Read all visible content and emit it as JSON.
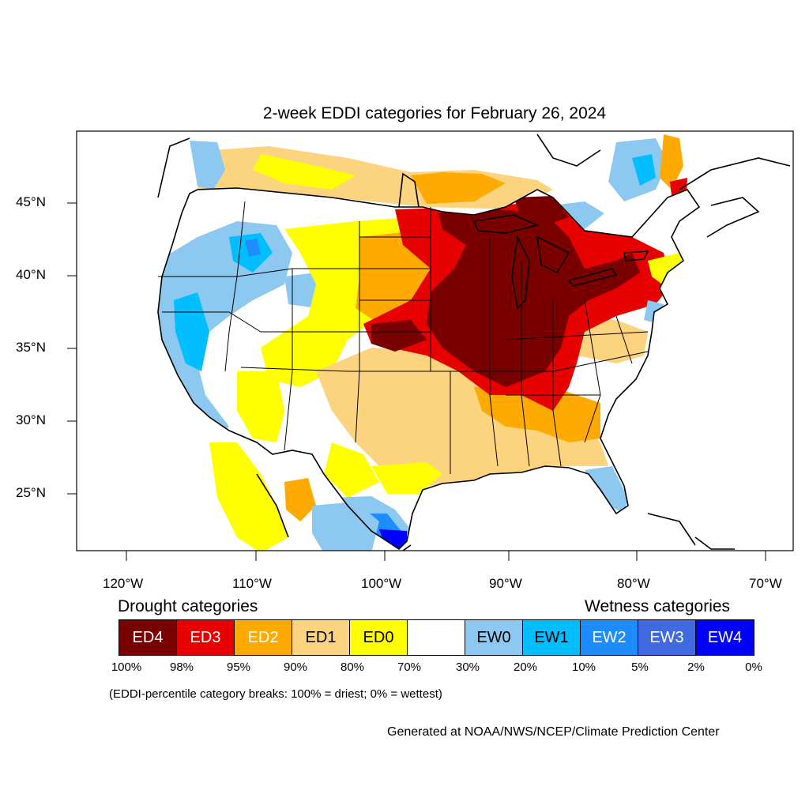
{
  "title": "2-week EDDI categories for February 26, 2024",
  "map": {
    "lat_ticks": [
      "45°N",
      "40°N",
      "35°N",
      "30°N",
      "25°N"
    ],
    "lon_ticks": [
      "120°W",
      "110°W",
      "100°W",
      "90°W",
      "80°W",
      "70°W"
    ],
    "colors": {
      "ED4": "#7a0000",
      "ED3": "#e60000",
      "ED2": "#ffaa00",
      "ED1": "#fcd37f",
      "ED0": "#ffff00",
      "EW0": "#8cc8f0",
      "EW1": "#00beff",
      "EW2": "#1e8cff",
      "EW3": "#4169e1",
      "EW4": "#0000ff"
    }
  },
  "legend": {
    "drought_heading": "Drought categories",
    "wetness_heading": "Wetness categories",
    "categories": [
      {
        "label": "ED4",
        "color": "#7a0000",
        "text_color": "#ffffff"
      },
      {
        "label": "ED3",
        "color": "#e60000",
        "text_color": "#ffffff"
      },
      {
        "label": "ED2",
        "color": "#ffaa00",
        "text_color": "#ffffff"
      },
      {
        "label": "ED1",
        "color": "#fcd37f",
        "text_color": "#000000"
      },
      {
        "label": "ED0",
        "color": "#ffff00",
        "text_color": "#000000"
      },
      {
        "label": "",
        "color": "#ffffff",
        "text_color": "#000000"
      },
      {
        "label": "EW0",
        "color": "#8cc8f0",
        "text_color": "#000000"
      },
      {
        "label": "EW1",
        "color": "#00beff",
        "text_color": "#000000"
      },
      {
        "label": "EW2",
        "color": "#1e8cff",
        "text_color": "#ffffff"
      },
      {
        "label": "EW3",
        "color": "#4169e1",
        "text_color": "#ffffff"
      },
      {
        "label": "EW4",
        "color": "#0000ff",
        "text_color": "#ffffff"
      }
    ],
    "breaks": [
      "100%",
      "98%",
      "95%",
      "90%",
      "80%",
      "70%",
      "30%",
      "20%",
      "10%",
      "5%",
      "2%",
      "0%"
    ],
    "note": "(EDDI-percentile category breaks: 100% = driest; 0% = wettest)"
  },
  "credit": "Generated at NOAA/NWS/NCEP/Climate Prediction Center"
}
